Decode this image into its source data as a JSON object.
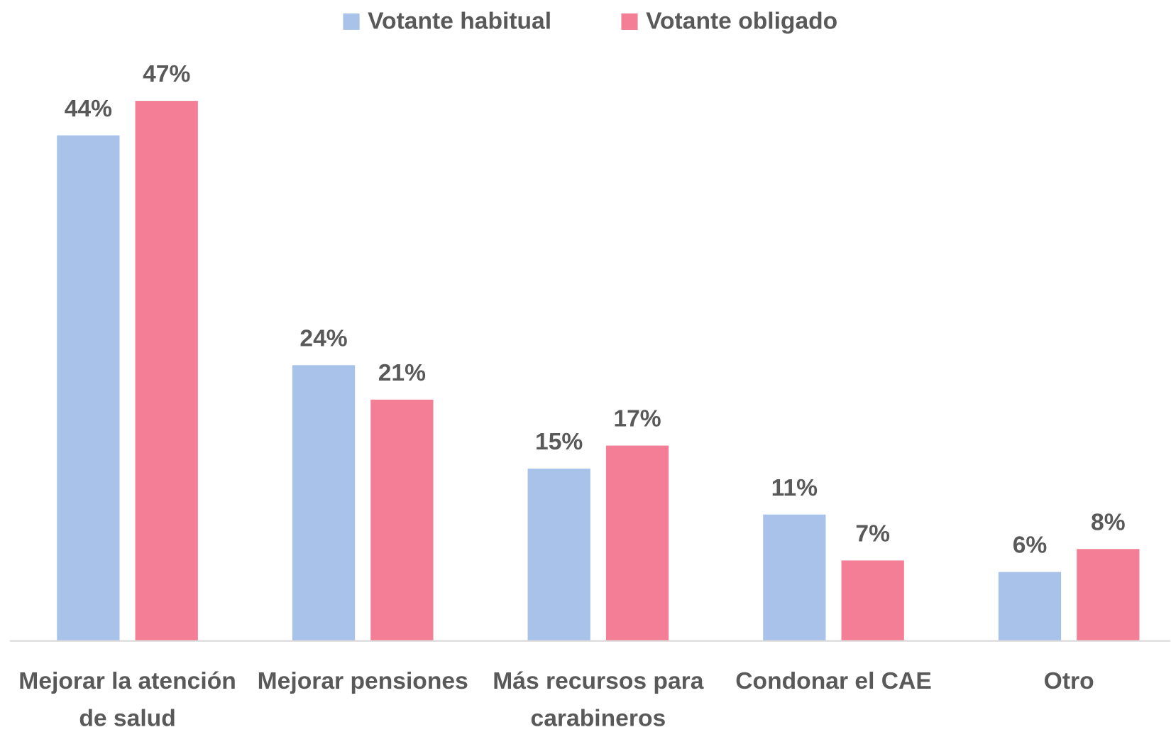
{
  "chart_data": {
    "type": "bar",
    "categories": [
      "Mejorar la atención de salud",
      "Mejorar pensiones",
      "Más recursos para carabineros",
      "Condonar el CAE",
      "Otro"
    ],
    "series": [
      {
        "name": "Votante habitual",
        "color": "#a9c2e9",
        "values": [
          44,
          24,
          15,
          11,
          6
        ],
        "value_labels": [
          "44%",
          "24%",
          "15%",
          "11%",
          "6%"
        ]
      },
      {
        "name": "Votante obligado",
        "color": "#f47e96",
        "values": [
          47,
          21,
          17,
          7,
          8
        ],
        "value_labels": [
          "47%",
          "21%",
          "17%",
          "7%",
          "8%"
        ]
      }
    ],
    "ylim": [
      0,
      55
    ],
    "legend": "top"
  }
}
